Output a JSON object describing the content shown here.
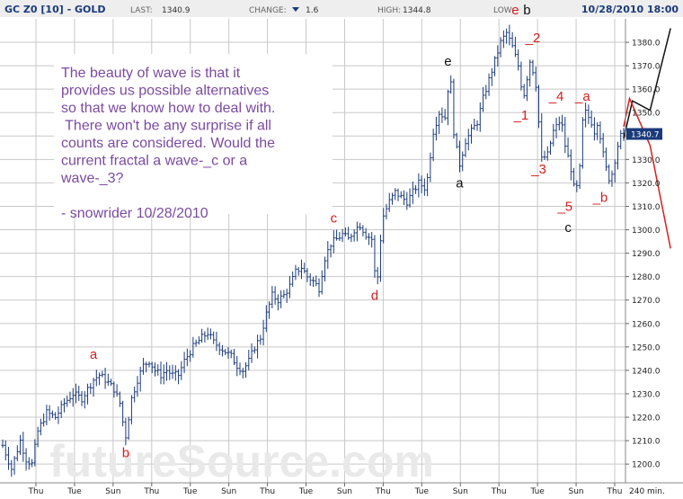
{
  "header": {
    "symbol": "GC Z0 [10] - GOLD",
    "last_label": "LAST:",
    "last_value": "1340.9",
    "change_label": "CHANGE:",
    "change_value": "1.6",
    "high_label": "HIGH:",
    "high_value": "1344.8",
    "low_label": "LOW:",
    "date_time": "10/28/2010 18:00"
  },
  "annotation": {
    "lines": [
      "The beauty of wave is that it",
      "provides us possible alternatives",
      "so that we know how to deal with.",
      " There won't be any surprise if all",
      "counts are considered.  Would the",
      "current fractal a wave-_c or a",
      "wave-_3?",
      "",
      "- snowrider  10/28/2010"
    ]
  },
  "watermark": "futureSource.com",
  "price_box": "1340.7",
  "colors": {
    "bars": "#1a3a7a",
    "grid": "#c8c8c8",
    "header_bg": "#eeeeee",
    "header_text": "#1a3a7a",
    "annotation_text": "#7b4ba0",
    "wave_red": "#d42020",
    "wave_black": "#111111",
    "price_box_bg": "#1a3a7a"
  },
  "chart_data": {
    "type": "bar",
    "subtype": "ohlc",
    "ylim": [
      1192,
      1390
    ],
    "y_ticks": [
      1200,
      1210,
      1220,
      1230,
      1240,
      1250,
      1260,
      1270,
      1280,
      1290,
      1300,
      1310,
      1320,
      1330,
      1340,
      1350,
      1360,
      1370,
      1380
    ],
    "x_tick_labels": [
      "Thu",
      "Tue",
      "Sun",
      "Thu",
      "Tue",
      "Sun",
      "Thu",
      "Tue",
      "Sun",
      "Thu",
      "Tue",
      "Sun",
      "Thu",
      "Tue",
      "Sun",
      "Thu"
    ],
    "x_unit_label": "240 min.",
    "grid": true,
    "price_path": [
      [
        0,
        1208
      ],
      [
        3,
        1198
      ],
      [
        6,
        1210
      ],
      [
        8,
        1202
      ],
      [
        10,
        1200
      ],
      [
        12,
        1214
      ],
      [
        15,
        1222
      ],
      [
        18,
        1220
      ],
      [
        21,
        1226
      ],
      [
        24,
        1230
      ],
      [
        27,
        1228
      ],
      [
        29,
        1232
      ],
      [
        31,
        1236
      ],
      [
        33,
        1238
      ],
      [
        35,
        1236
      ],
      [
        38,
        1232
      ],
      [
        40,
        1226
      ],
      [
        41,
        1218
      ],
      [
        42,
        1212
      ],
      [
        44,
        1228
      ],
      [
        46,
        1236
      ],
      [
        48,
        1242
      ],
      [
        50,
        1244
      ],
      [
        52,
        1240
      ],
      [
        54,
        1238
      ],
      [
        56,
        1240
      ],
      [
        58,
        1238
      ],
      [
        60,
        1238
      ],
      [
        62,
        1244
      ],
      [
        65,
        1250
      ],
      [
        68,
        1254
      ],
      [
        70,
        1256
      ],
      [
        72,
        1252
      ],
      [
        74,
        1250
      ],
      [
        76,
        1248
      ],
      [
        78,
        1246
      ],
      [
        80,
        1242
      ],
      [
        82,
        1240
      ],
      [
        84,
        1244
      ],
      [
        86,
        1250
      ],
      [
        88,
        1254
      ],
      [
        90,
        1264
      ],
      [
        92,
        1272
      ],
      [
        94,
        1270
      ],
      [
        96,
        1272
      ],
      [
        98,
        1276
      ],
      [
        100,
        1282
      ],
      [
        102,
        1284
      ],
      [
        104,
        1280
      ],
      [
        106,
        1278
      ],
      [
        108,
        1275
      ],
      [
        110,
        1288
      ],
      [
        112,
        1294
      ],
      [
        114,
        1296
      ],
      [
        116,
        1298
      ],
      [
        118,
        1296
      ],
      [
        120,
        1300
      ],
      [
        122,
        1302
      ],
      [
        124,
        1298
      ],
      [
        126,
        1296
      ],
      [
        127,
        1282
      ],
      [
        128,
        1280
      ],
      [
        129,
        1296
      ],
      [
        130,
        1306
      ],
      [
        132,
        1312
      ],
      [
        134,
        1316
      ],
      [
        136,
        1314
      ],
      [
        138,
        1312
      ],
      [
        140,
        1316
      ],
      [
        142,
        1320
      ],
      [
        144,
        1318
      ],
      [
        145,
        1322
      ],
      [
        147,
        1342
      ],
      [
        149,
        1350
      ],
      [
        151,
        1348
      ],
      [
        152,
        1360
      ],
      [
        153,
        1362
      ],
      [
        154,
        1342
      ],
      [
        155,
        1334
      ],
      [
        156,
        1328
      ],
      [
        158,
        1338
      ],
      [
        160,
        1342
      ],
      [
        162,
        1346
      ],
      [
        164,
        1356
      ],
      [
        166,
        1364
      ],
      [
        168,
        1372
      ],
      [
        170,
        1380
      ],
      [
        172,
        1384
      ],
      [
        174,
        1378
      ],
      [
        176,
        1370
      ],
      [
        177,
        1362
      ],
      [
        178,
        1358
      ],
      [
        180,
        1372
      ],
      [
        181,
        1368
      ],
      [
        182,
        1362
      ],
      [
        183,
        1346
      ],
      [
        184,
        1330
      ],
      [
        186,
        1332
      ],
      [
        188,
        1342
      ],
      [
        190,
        1346
      ],
      [
        191,
        1344
      ],
      [
        192,
        1336
      ],
      [
        194,
        1326
      ],
      [
        195,
        1318
      ],
      [
        196,
        1318
      ],
      [
        197,
        1326
      ],
      [
        198,
        1346
      ],
      [
        199,
        1350
      ],
      [
        201,
        1346
      ],
      [
        202,
        1342
      ],
      [
        203,
        1346
      ],
      [
        204,
        1340
      ],
      [
        205,
        1332
      ],
      [
        206,
        1326
      ],
      [
        207,
        1322
      ],
      [
        208,
        1324
      ],
      [
        209,
        1330
      ],
      [
        210,
        1336
      ],
      [
        211,
        1340
      ],
      [
        212,
        1341
      ]
    ],
    "x_count": 213,
    "wave_labels": [
      {
        "text": "a",
        "color": "red",
        "x": 31,
        "y": 1245
      },
      {
        "text": "b",
        "color": "red",
        "x": 42,
        "y": 1203
      },
      {
        "text": "c",
        "color": "red",
        "x": 113,
        "y": 1303
      },
      {
        "text": "d",
        "color": "red",
        "x": 127,
        "y": 1270
      },
      {
        "text": "e",
        "color": "black",
        "x": 152,
        "y": 1370
      },
      {
        "text": "a",
        "color": "black",
        "x": 156,
        "y": 1318
      },
      {
        "text": "e",
        "color": "red",
        "x": 175,
        "y": 1392
      },
      {
        "text": "b",
        "color": "black",
        "x": 179,
        "y": 1392
      },
      {
        "text": "_2",
        "color": "red",
        "x": 181,
        "y": 1380
      },
      {
        "text": "_1",
        "color": "red",
        "x": 177,
        "y": 1347
      },
      {
        "text": "_3",
        "color": "red",
        "x": 183,
        "y": 1324
      },
      {
        "text": "_4",
        "color": "red",
        "x": 189,
        "y": 1355
      },
      {
        "text": "_a",
        "color": "red",
        "x": 198,
        "y": 1355
      },
      {
        "text": "_5",
        "color": "red",
        "x": 192,
        "y": 1308
      },
      {
        "text": "c",
        "color": "black",
        "x": 193,
        "y": 1299
      },
      {
        "text": "_b",
        "color": "red",
        "x": 204,
        "y": 1312
      }
    ],
    "projection_black": [
      [
        212,
        1339
      ],
      [
        215,
        1355
      ],
      [
        221,
        1351
      ],
      [
        228,
        1386
      ]
    ],
    "projection_red": [
      [
        212,
        1344
      ],
      [
        214,
        1356
      ],
      [
        221,
        1336
      ],
      [
        228,
        1292
      ]
    ]
  }
}
